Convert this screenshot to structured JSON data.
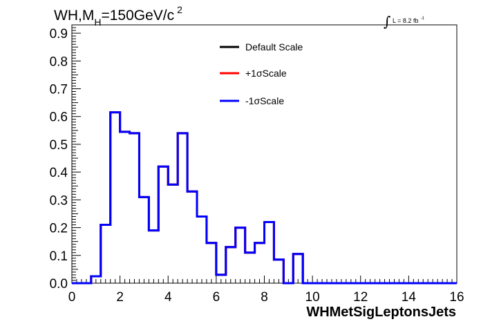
{
  "chart_data": {
    "type": "line",
    "drawstyle": "step",
    "title": {
      "main": "WH,M",
      "subscript": "H",
      "rest": "=150GeV/c",
      "superscript": "2"
    },
    "luminosity": {
      "integral": "∫",
      "text": "L = 8.2 fb",
      "superscript": "-1"
    },
    "xlabel": "WHMetSigLeptonsJets",
    "ylabel": "",
    "xlim": [
      0,
      16
    ],
    "ylim": [
      0,
      0.93
    ],
    "bin_width": 0.4,
    "x_ticks": [
      "0",
      "2",
      "4",
      "6",
      "8",
      "10",
      "12",
      "14",
      "16"
    ],
    "y_ticks": [
      "0.0",
      "0.1",
      "0.2",
      "0.3",
      "0.4",
      "0.5",
      "0.6",
      "0.7",
      "0.8",
      "0.9"
    ],
    "grid": false,
    "legend_position": "top-center",
    "bin_edges": [
      0,
      0.4,
      0.8,
      1.2,
      1.6,
      2.0,
      2.4,
      2.8,
      3.2,
      3.6,
      4.0,
      4.4,
      4.8,
      5.2,
      5.6,
      6.0,
      6.4,
      6.8,
      7.2,
      7.6,
      8.0,
      8.4,
      8.8,
      9.2,
      9.6,
      10.0,
      10.4,
      10.8,
      11.2,
      11.6,
      12.0,
      12.4,
      12.8,
      13.2,
      13.6,
      14.0,
      14.4,
      14.8,
      15.2,
      15.6,
      16.0
    ],
    "series": [
      {
        "name": "Default Scale",
        "color": "#000000",
        "values": [
          0,
          0,
          0.025,
          0.21,
          0.615,
          0.545,
          0.54,
          0.31,
          0.19,
          0.42,
          0.355,
          0.54,
          0.33,
          0.24,
          0.145,
          0.03,
          0.13,
          0.2,
          0.11,
          0.145,
          0.22,
          0.085,
          0,
          0.105,
          0,
          0,
          0,
          0,
          0,
          0,
          0,
          0,
          0,
          0,
          0,
          0,
          0,
          0,
          0,
          0
        ]
      },
      {
        "name": "+1σScale",
        "color": "#ff0000",
        "values": [
          0,
          0,
          0.025,
          0.21,
          0.615,
          0.545,
          0.54,
          0.31,
          0.19,
          0.42,
          0.355,
          0.54,
          0.33,
          0.24,
          0.145,
          0.03,
          0.13,
          0.2,
          0.11,
          0.145,
          0.22,
          0.085,
          0,
          0.105,
          0,
          0,
          0,
          0,
          0,
          0,
          0,
          0,
          0,
          0,
          0,
          0,
          0,
          0,
          0,
          0
        ]
      },
      {
        "name": "-1σScale",
        "color": "#0000ff",
        "values": [
          0,
          0,
          0.025,
          0.21,
          0.615,
          0.545,
          0.54,
          0.31,
          0.19,
          0.42,
          0.355,
          0.54,
          0.33,
          0.24,
          0.145,
          0.03,
          0.13,
          0.2,
          0.11,
          0.145,
          0.22,
          0.085,
          0,
          0.105,
          0,
          0,
          0,
          0,
          0,
          0,
          0,
          0,
          0,
          0,
          0,
          0,
          0,
          0,
          0,
          0
        ]
      }
    ]
  }
}
